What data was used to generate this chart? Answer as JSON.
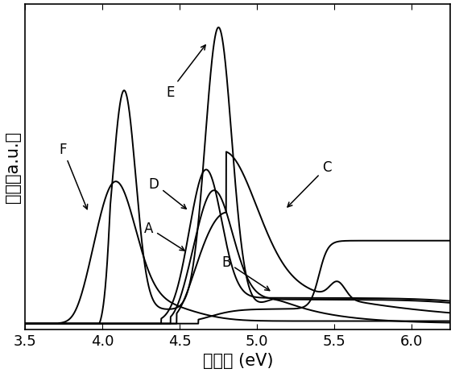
{
  "xlim": [
    3.5,
    6.25
  ],
  "ylim": [
    -0.02,
    1.08
  ],
  "xlabel": "结合能 (eV)",
  "ylabel": "强度（a.u.）",
  "xlabel_fontsize": 15,
  "ylabel_fontsize": 15,
  "tick_fontsize": 13,
  "background_color": "#ffffff",
  "line_color": "#000000",
  "lw": 1.4
}
